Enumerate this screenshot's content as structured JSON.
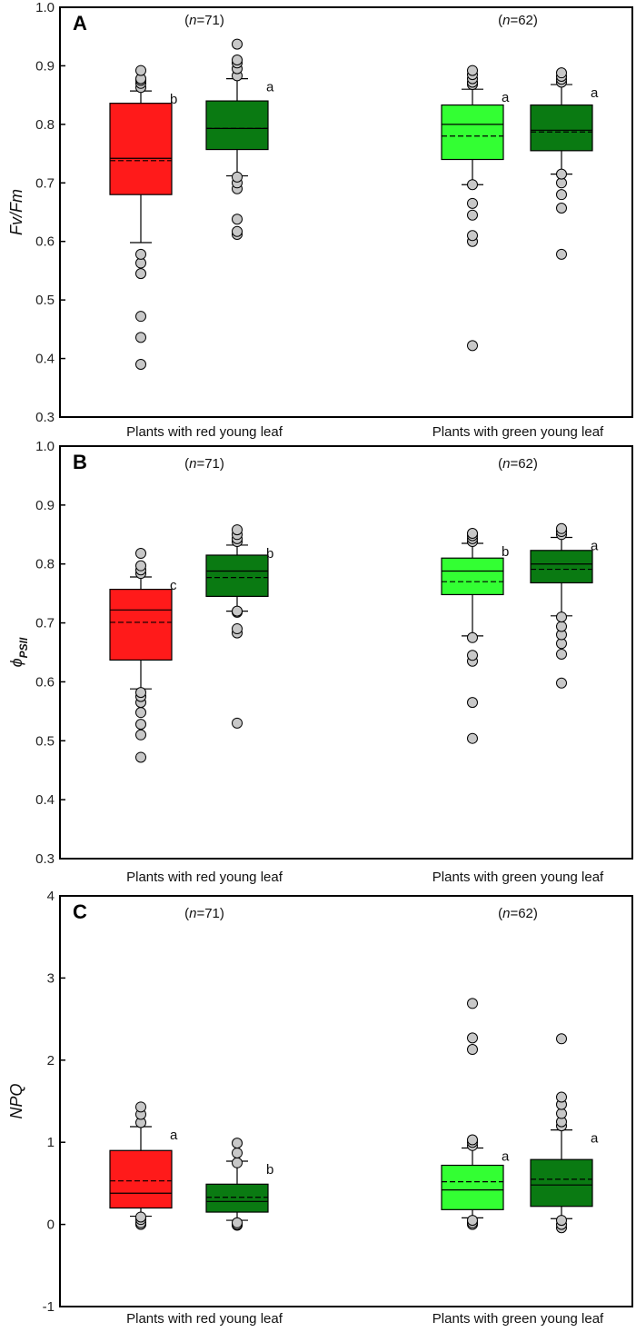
{
  "chart_data": [
    {
      "type": "box",
      "panel_label": "A",
      "ylabel": "Fv/Fm",
      "ylim": [
        0.3,
        1.0
      ],
      "yticks": [
        "0.3",
        "0.4",
        "0.5",
        "0.6",
        "0.7",
        "0.8",
        "0.9",
        "1.0"
      ],
      "groups": [
        {
          "label": "Plants with red young leaf",
          "n_text": "n",
          "n_value": "=71"
        },
        {
          "label": "Plants with green young leaf",
          "n_text": "n",
          "n_value": "=62"
        }
      ],
      "boxes": [
        {
          "group": 0,
          "color": "#ff1a1a",
          "q1": 0.68,
          "q3": 0.836,
          "median": 0.742,
          "mean": 0.738,
          "whisker_low": 0.598,
          "whisker_high": 0.857,
          "outliers": [
            0.39,
            0.436,
            0.472,
            0.545,
            0.563,
            0.578,
            0.863,
            0.87,
            0.875,
            0.878,
            0.892
          ],
          "letter": "b"
        },
        {
          "group": 0,
          "color": "#0a7a12",
          "q1": 0.757,
          "q3": 0.84,
          "median": 0.793,
          "mean": 0.793,
          "whisker_low": 0.712,
          "whisker_high": 0.878,
          "outliers": [
            0.612,
            0.617,
            0.638,
            0.69,
            0.7,
            0.71,
            0.883,
            0.895,
            0.905,
            0.91,
            0.937
          ],
          "letter": "a"
        },
        {
          "group": 1,
          "color": "#33ff33",
          "q1": 0.74,
          "q3": 0.833,
          "median": 0.8,
          "mean": 0.78,
          "whisker_low": 0.697,
          "whisker_high": 0.86,
          "outliers": [
            0.422,
            0.6,
            0.61,
            0.645,
            0.665,
            0.697,
            0.868,
            0.872,
            0.878,
            0.885,
            0.892
          ],
          "letter": "a"
        },
        {
          "group": 1,
          "color": "#0a7a12",
          "q1": 0.755,
          "q3": 0.833,
          "median": 0.79,
          "mean": 0.787,
          "whisker_low": 0.715,
          "whisker_high": 0.868,
          "outliers": [
            0.578,
            0.657,
            0.68,
            0.7,
            0.715,
            0.872,
            0.877,
            0.882,
            0.888
          ],
          "letter": "a"
        }
      ]
    },
    {
      "type": "box",
      "panel_label": "B",
      "ylabel": "ϕ",
      "ylabel_sub": "PSII",
      "ylim": [
        0.3,
        1.0
      ],
      "yticks": [
        "0.3",
        "0.4",
        "0.5",
        "0.6",
        "0.7",
        "0.8",
        "0.9",
        "1.0"
      ],
      "groups": [
        {
          "label": "Plants with red young leaf",
          "n_text": "n",
          "n_value": "=71"
        },
        {
          "label": "Plants with green young leaf",
          "n_text": "n",
          "n_value": "=62"
        }
      ],
      "boxes": [
        {
          "group": 0,
          "color": "#ff1a1a",
          "q1": 0.637,
          "q3": 0.757,
          "median": 0.722,
          "mean": 0.701,
          "whisker_low": 0.588,
          "whisker_high": 0.778,
          "outliers": [
            0.472,
            0.51,
            0.528,
            0.548,
            0.565,
            0.575,
            0.582,
            0.784,
            0.79,
            0.797,
            0.818
          ],
          "letter": "c"
        },
        {
          "group": 0,
          "color": "#0a7a12",
          "q1": 0.745,
          "q3": 0.815,
          "median": 0.788,
          "mean": 0.777,
          "whisker_low": 0.72,
          "whisker_high": 0.832,
          "outliers": [
            0.53,
            0.683,
            0.69,
            0.718,
            0.72,
            0.838,
            0.843,
            0.85,
            0.858
          ],
          "letter": "b"
        },
        {
          "group": 1,
          "color": "#33ff33",
          "q1": 0.748,
          "q3": 0.81,
          "median": 0.788,
          "mean": 0.77,
          "whisker_low": 0.678,
          "whisker_high": 0.835,
          "outliers": [
            0.504,
            0.565,
            0.635,
            0.645,
            0.675,
            0.838,
            0.843,
            0.848,
            0.852
          ],
          "letter": "b"
        },
        {
          "group": 1,
          "color": "#0a7a12",
          "q1": 0.768,
          "q3": 0.823,
          "median": 0.8,
          "mean": 0.791,
          "whisker_low": 0.712,
          "whisker_high": 0.845,
          "outliers": [
            0.598,
            0.647,
            0.665,
            0.68,
            0.694,
            0.71,
            0.85,
            0.855,
            0.86
          ],
          "letter": "a"
        }
      ]
    },
    {
      "type": "box",
      "panel_label": "C",
      "ylabel": "NPQ",
      "ylim": [
        -1,
        4
      ],
      "yticks": [
        "-1",
        "0",
        "1",
        "2",
        "3",
        "4"
      ],
      "groups": [
        {
          "label": "Plants with red young leaf",
          "n_text": "n",
          "n_value": "=71"
        },
        {
          "label": "Plants with green young leaf",
          "n_text": "n",
          "n_value": "=62"
        }
      ],
      "boxes": [
        {
          "group": 0,
          "color": "#ff1a1a",
          "q1": 0.2,
          "q3": 0.9,
          "median": 0.38,
          "mean": 0.53,
          "whisker_low": 0.1,
          "whisker_high": 1.19,
          "outliers": [
            0.0,
            0.02,
            0.06,
            0.09,
            1.24,
            1.34,
            1.43
          ],
          "letter": "a"
        },
        {
          "group": 0,
          "color": "#0a7a12",
          "q1": 0.15,
          "q3": 0.49,
          "median": 0.28,
          "mean": 0.33,
          "whisker_low": 0.05,
          "whisker_high": 0.77,
          "outliers": [
            -0.01,
            0.0,
            0.02,
            0.75,
            0.87,
            0.99
          ],
          "letter": "b"
        },
        {
          "group": 1,
          "color": "#33ff33",
          "q1": 0.18,
          "q3": 0.72,
          "median": 0.42,
          "mean": 0.52,
          "whisker_low": 0.08,
          "whisker_high": 0.93,
          "outliers": [
            0.0,
            0.02,
            0.05,
            0.96,
            1.0,
            1.03,
            2.13,
            2.27,
            2.69
          ],
          "letter": "a"
        },
        {
          "group": 1,
          "color": "#0a7a12",
          "q1": 0.22,
          "q3": 0.79,
          "median": 0.48,
          "mean": 0.55,
          "whisker_low": 0.07,
          "whisker_high": 1.15,
          "outliers": [
            -0.04,
            0.0,
            0.05,
            1.2,
            1.25,
            1.35,
            1.46,
            1.55,
            2.26
          ],
          "letter": "a"
        }
      ]
    }
  ]
}
